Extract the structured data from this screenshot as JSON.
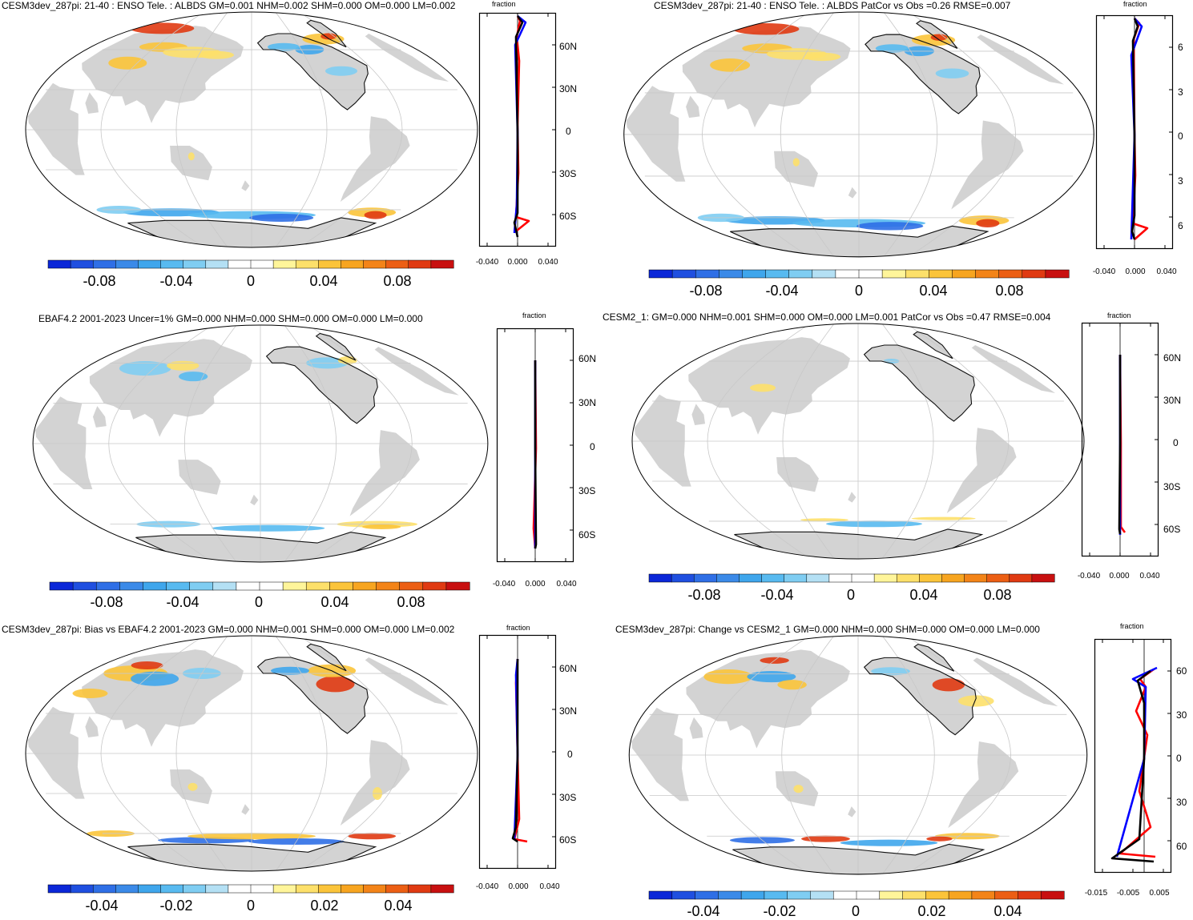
{
  "colors": {
    "land": "#d3d3d3",
    "grid": "#c8c8c8",
    "ocean": "#ffffff",
    "line_black": "#000000",
    "line_red": "#ff0000",
    "line_blue": "#0000ff",
    "palette": [
      "#0b27d8",
      "#1f4fe0",
      "#2f6fe6",
      "#3b8ae8",
      "#3fa6ec",
      "#58baf0",
      "#7fcdf2",
      "#b4e0f4",
      "#ffffff",
      "#ffffff",
      "#fff59a",
      "#fde06a",
      "#fbc43a",
      "#f7a520",
      "#f38418",
      "#ec5f14",
      "#e03a12",
      "#c81010"
    ]
  },
  "panels": [
    {
      "id": "p1",
      "title": "CESM3dev_287pi: 21-40 : ENSO Tele. : ALBDS GM=0.001 NHM=0.002 SHM=0.000 OM=0.000 LM=0.002",
      "cbar_labels": [
        "-0.08",
        "-0.04",
        "0",
        "0.04",
        "0.08"
      ],
      "zonal_lat_labels": [
        "60N",
        "30N",
        "0",
        "30S",
        "60S"
      ],
      "zonal_x_labels": [
        "-0.040",
        "0.000",
        "0.040"
      ],
      "zonal_xlabel": "fraction"
    },
    {
      "id": "p2",
      "title": "CESM3dev_287pi: 21-40 : ENSO Tele. : ALBDS PatCor vs Obs =0.26 RMSE=0.007",
      "cbar_labels": [
        "-0.08",
        "-0.04",
        "0",
        "0.04",
        "0.08"
      ],
      "zonal_lat_labels": [
        "6",
        "3",
        "0",
        "3",
        "6"
      ],
      "zonal_x_labels": [
        "-0.040",
        "0.000",
        "0.040"
      ],
      "zonal_xlabel": "fraction"
    },
    {
      "id": "p3",
      "title": "EBAF4.2 2001-2023 Uncer=1% GM=0.000 NHM=0.000 SHM=0.000 OM=0.000 LM=0.000",
      "cbar_labels": [
        "-0.08",
        "-0.04",
        "0",
        "0.04",
        "0.08"
      ],
      "zonal_lat_labels": [
        "60N",
        "30N",
        "0",
        "30S",
        "60S"
      ],
      "zonal_x_labels": [
        "-0.040",
        "0.000",
        "0.040"
      ],
      "zonal_xlabel": "fraction"
    },
    {
      "id": "p4",
      "title": "CESM2_1: GM=0.000 NHM=0.001 SHM=0.000 OM=0.000 LM=0.001 PatCor vs Obs =0.47 RMSE=0.004",
      "cbar_labels": [
        "-0.08",
        "-0.04",
        "0",
        "0.04",
        "0.08"
      ],
      "zonal_lat_labels": [
        "60N",
        "30N",
        "0",
        "30S",
        "60S"
      ],
      "zonal_x_labels": [
        "-0.040",
        "0.000",
        "0.040"
      ],
      "zonal_xlabel": "fraction"
    },
    {
      "id": "p5",
      "title": "CESM3dev_287pi: Bias vs EBAF4.2 2001-2023 GM=0.000 NHM=0.001 SHM=0.000 OM=0.000 LM=0.002",
      "cbar_labels": [
        "-0.04",
        "-0.02",
        "0",
        "0.02",
        "0.04"
      ],
      "zonal_lat_labels": [
        "60N",
        "30N",
        "0",
        "30S",
        "60S"
      ],
      "zonal_x_labels": [
        "-0.040",
        "0.000",
        "0.040"
      ],
      "zonal_xlabel": "fraction"
    },
    {
      "id": "p6",
      "title": "CESM3dev_287pi: Change vs CESM2_1 GM=0.000 NHM=0.000 SHM=0.000 OM=0.000 LM=0.000",
      "cbar_labels": [
        "-0.04",
        "-0.02",
        "0",
        "0.02",
        "0.04"
      ],
      "zonal_lat_labels": [
        "60",
        "30",
        "0",
        "30",
        "60"
      ],
      "zonal_x_labels": [
        "-0.015",
        "-0.005",
        "0.005"
      ],
      "zonal_xlabel": "fraction"
    }
  ]
}
